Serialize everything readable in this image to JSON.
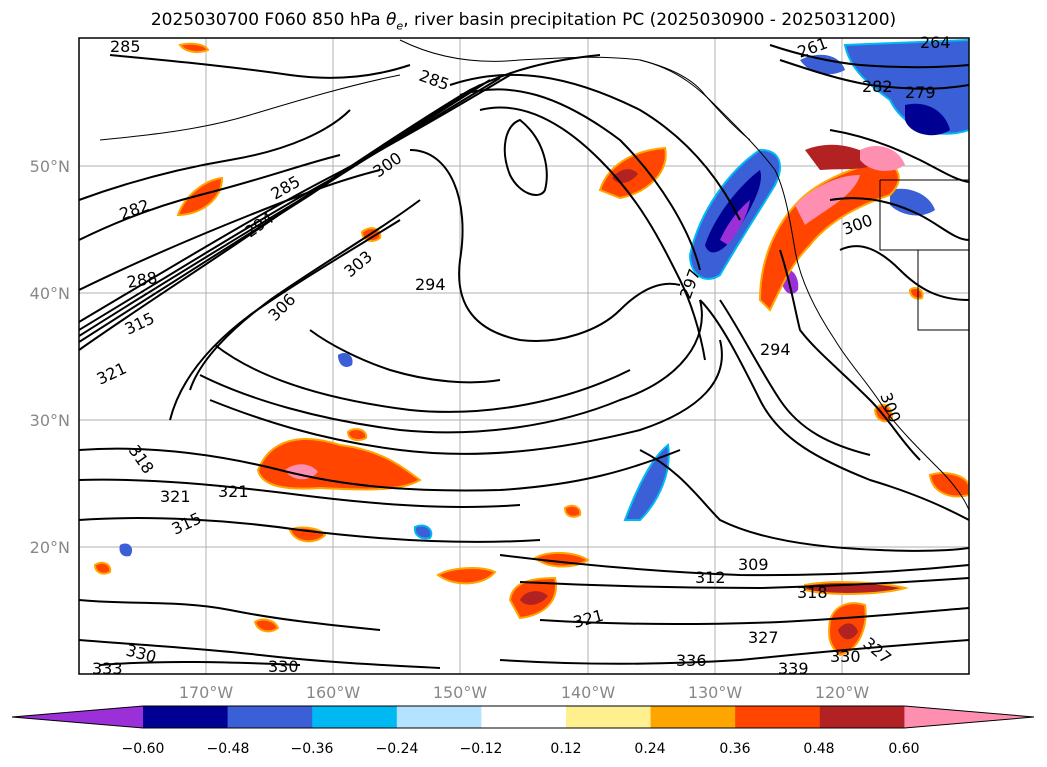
{
  "title": {
    "prefix": "2025030700 F060 850 hPa ",
    "theta": "θ",
    "sub": "e",
    "suffix": ", river basin precipitation PC (2025030900 - 2025031200)"
  },
  "map": {
    "lon_labels": [
      "170°W",
      "160°W",
      "150°W",
      "140°W",
      "130°W",
      "120°W"
    ],
    "lat_labels": [
      "50°N",
      "40°N",
      "30°N",
      "20°N"
    ],
    "contour_labels": [
      "285",
      "282",
      "285",
      "300",
      "294",
      "288",
      "303",
      "306",
      "294",
      "315",
      "321",
      "318",
      "321",
      "321",
      "315",
      "309",
      "312",
      "318",
      "321",
      "327",
      "330",
      "330",
      "333",
      "336",
      "339",
      "294",
      "297",
      "300",
      "300",
      "285",
      "261",
      "264",
      "282",
      "279",
      "327",
      "330"
    ]
  },
  "colorbar": {
    "colors": [
      "#9b30d9",
      "#000093",
      "#3a5fd6",
      "#00b9f2",
      "#b3e3ff",
      "#ffffff",
      "#fff08f",
      "#ffa500",
      "#ff4500",
      "#b22222",
      "#ff8fb0"
    ],
    "ticks": [
      "−0.60",
      "−0.48",
      "−0.36",
      "−0.24",
      "−0.12",
      "0.12",
      "0.24",
      "0.36",
      "0.48",
      "0.60"
    ]
  }
}
